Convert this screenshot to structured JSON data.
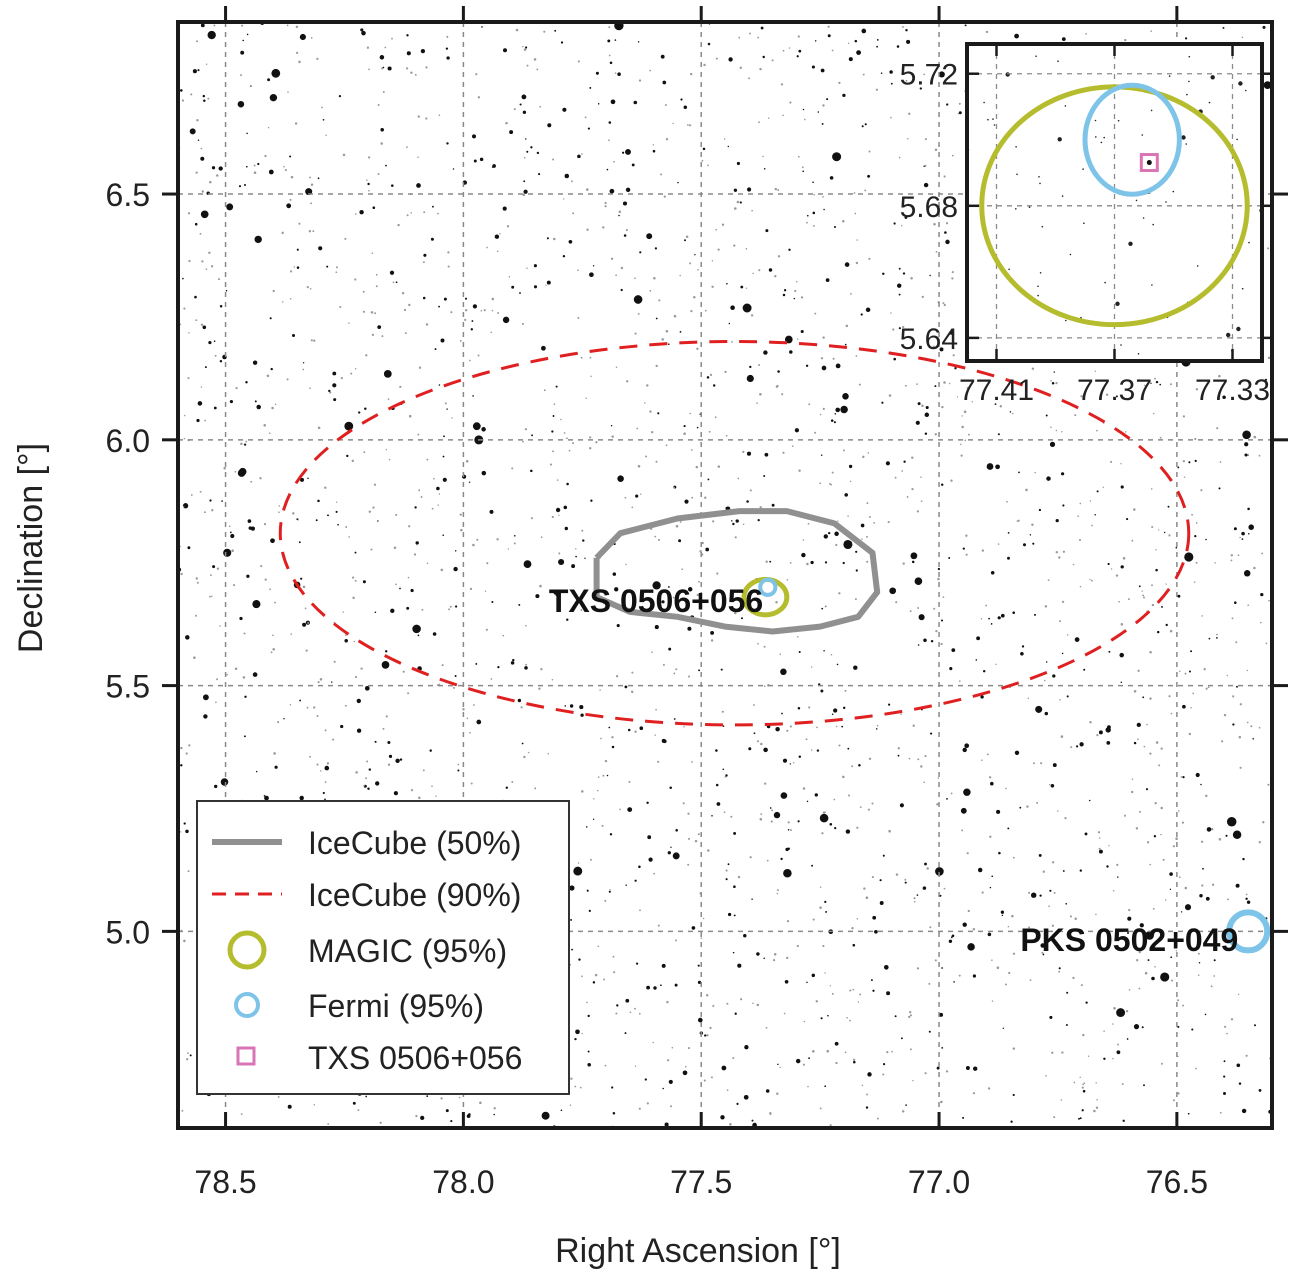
{
  "chart_data": [
    {
      "type": "scatter",
      "panel": "main",
      "xlabel": "Right Ascension [°]",
      "ylabel": "Declination [°]",
      "xlim": [
        78.6,
        76.3
      ],
      "ylim": [
        4.6,
        6.85
      ],
      "x_reversed": true,
      "x_ticks": [
        78.5,
        78.0,
        77.5,
        77.0,
        76.5
      ],
      "x_tick_labels": [
        "78.5",
        "78.0",
        "77.5",
        "77.0",
        "76.5"
      ],
      "y_ticks": [
        5.0,
        5.5,
        6.0,
        6.5
      ],
      "y_tick_labels": [
        "5.0",
        "5.5",
        "6.0",
        "6.5"
      ],
      "grid": true,
      "background": "optical star field",
      "legend_position": "lower-left",
      "series": [
        {
          "name": "IceCube (50%)",
          "kind": "contour",
          "style": "solid",
          "color": "#909090",
          "points": [
            [
              77.72,
              5.76
            ],
            [
              77.67,
              5.81
            ],
            [
              77.55,
              5.84
            ],
            [
              77.42,
              5.855
            ],
            [
              77.32,
              5.855
            ],
            [
              77.22,
              5.83
            ],
            [
              77.14,
              5.77
            ],
            [
              77.13,
              5.69
            ],
            [
              77.17,
              5.64
            ],
            [
              77.25,
              5.62
            ],
            [
              77.35,
              5.61
            ],
            [
              77.45,
              5.62
            ],
            [
              77.55,
              5.64
            ],
            [
              77.65,
              5.65
            ],
            [
              77.72,
              5.68
            ],
            [
              77.72,
              5.76
            ]
          ]
        },
        {
          "name": "IceCube (90%)",
          "kind": "ellipse",
          "style": "dashed",
          "color": "#e02020",
          "center": [
            77.43,
            5.81
          ],
          "semi_axes_deg": [
            0.955,
            0.39
          ]
        },
        {
          "name": "MAGIC (95%)",
          "kind": "circle",
          "color": "#b5bd2e",
          "center": [
            77.365,
            5.68
          ],
          "radius_deg": [
            0.045,
            0.036
          ]
        },
        {
          "name": "Fermi (95%)",
          "kind": "circle",
          "color": "#7ec3e8",
          "sources": [
            {
              "center": [
                77.36,
                5.7
              ],
              "radius_deg": 0.016
            },
            {
              "center": [
                76.35,
                5.0
              ],
              "radius_deg": 0.04
            }
          ]
        },
        {
          "name": "TXS 0506+056",
          "kind": "marker-square",
          "color": "#d975b5",
          "point": [
            77.3582,
            5.6931
          ]
        }
      ],
      "annotations": [
        {
          "text": "TXS 0506+056",
          "x": 77.595,
          "y": 5.65
        },
        {
          "text": "PKS 0502+049",
          "x": 76.6,
          "y": 4.96
        }
      ]
    },
    {
      "type": "scatter",
      "panel": "inset",
      "xlim": [
        77.42,
        77.32
      ],
      "ylim": [
        5.633,
        5.729
      ],
      "x_reversed": true,
      "x_ticks": [
        77.41,
        77.37,
        77.33
      ],
      "x_tick_labels": [
        "77.41",
        "77.37",
        "77.33"
      ],
      "y_ticks": [
        5.64,
        5.68,
        5.72
      ],
      "y_tick_labels": [
        "5.64",
        "5.68",
        "5.72"
      ],
      "grid": true,
      "series": [
        {
          "name": "MAGIC (95%)",
          "kind": "ellipse",
          "color": "#b5bd2e",
          "center": [
            77.37,
            5.68
          ],
          "semi_axes_deg": [
            0.045,
            0.036
          ]
        },
        {
          "name": "Fermi (95%)",
          "kind": "circle",
          "color": "#7ec3e8",
          "center": [
            77.364,
            5.7
          ],
          "semi_axes_deg": [
            0.016,
            0.0165
          ]
        },
        {
          "name": "TXS 0506+056",
          "kind": "marker-square",
          "color": "#d975b5",
          "point": [
            77.3582,
            5.6931
          ]
        }
      ]
    }
  ],
  "legend": {
    "items": [
      {
        "label": "IceCube (50%)",
        "icon": "solid-line",
        "color": "#909090"
      },
      {
        "label": "IceCube (90%)",
        "icon": "dashed-line",
        "color": "#e02020"
      },
      {
        "label": "MAGIC (95%)",
        "icon": "circle",
        "color": "#b5bd2e"
      },
      {
        "label": "Fermi (95%)",
        "icon": "circle",
        "color": "#7ec3e8"
      },
      {
        "label": "TXS 0506+056",
        "icon": "square",
        "color": "#d975b5"
      }
    ]
  }
}
